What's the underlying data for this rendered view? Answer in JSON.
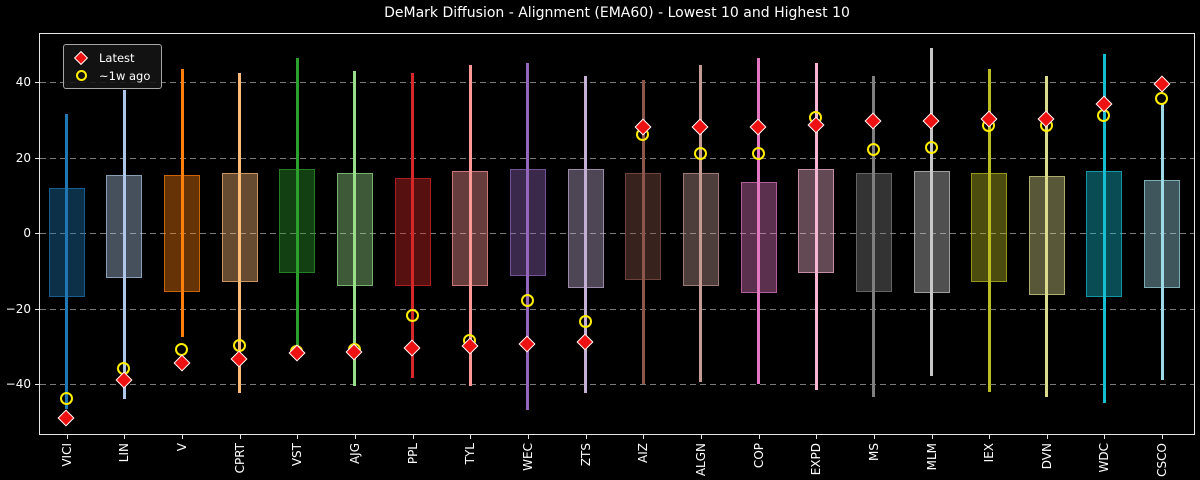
{
  "title": "DeMark Diffusion - Alignment (EMA60) - Lowest 10 and Highest 10",
  "legend": {
    "latest_label": "Latest",
    "week_ago_label": "~1w ago"
  },
  "colors": {
    "background": "#000000",
    "text": "#ffffff",
    "spine": "#e6e6e6",
    "tick": "#e6e6e6",
    "grid": "#7a7a7a",
    "latest_marker_fill": "#ee1111",
    "latest_marker_edge": "#ffffff",
    "week_ago_marker": "#ffee00",
    "legend_border": "#a6a6a6"
  },
  "chart_data": {
    "type": "box-whisker-range",
    "title": "DeMark Diffusion - Alignment (EMA60) - Lowest 10 and Highest 10",
    "xlabel": "",
    "ylabel": "",
    "ylim": [
      -53.5,
      53
    ],
    "grid": "horizontal-dashed",
    "legend_position": "upper-left",
    "legend_entries": [
      "Latest",
      "~1w ago"
    ],
    "y_ticks": [
      40,
      20,
      0,
      -20,
      -40
    ],
    "y_tick_labels": [
      "40",
      "20",
      "0",
      "−20",
      "−40"
    ],
    "categories": [
      "VICI",
      "LIN",
      "V",
      "CPRT",
      "VST",
      "AJG",
      "PPL",
      "TYL",
      "WEC",
      "ZTS",
      "AIZ",
      "ALGN",
      "COP",
      "EXPD",
      "MS",
      "MLM",
      "IEX",
      "DVN",
      "WDC",
      "CSCO"
    ],
    "series": [
      {
        "ticker": "VICI",
        "color": "#1f77b4",
        "whisker_low": -46.5,
        "whisker_high": 31.5,
        "box_low": -17,
        "box_high": 12,
        "latest": -49,
        "week_ago": -44
      },
      {
        "ticker": "LIN",
        "color": "#aec7e8",
        "whisker_low": -44,
        "whisker_high": 38,
        "box_low": -12,
        "box_high": 15.5,
        "latest": -39,
        "week_ago": -36
      },
      {
        "ticker": "V",
        "color": "#ff7f0e",
        "whisker_low": -27.5,
        "whisker_high": 43.5,
        "box_low": -15.5,
        "box_high": 15.5,
        "latest": -34.5,
        "week_ago": -31
      },
      {
        "ticker": "CPRT",
        "color": "#ffbb78",
        "whisker_low": -42.5,
        "whisker_high": 42.5,
        "box_low": -13,
        "box_high": 16,
        "latest": -33.5,
        "week_ago": -30
      },
      {
        "ticker": "VST",
        "color": "#2ca02c",
        "whisker_low": -33,
        "whisker_high": 46.5,
        "box_low": -10.5,
        "box_high": 17,
        "latest": -32,
        "week_ago": -31.5
      },
      {
        "ticker": "AJG",
        "color": "#98df8a",
        "whisker_low": -40.5,
        "whisker_high": 43,
        "box_low": -14,
        "box_high": 16,
        "latest": -31.5,
        "week_ago": -31
      },
      {
        "ticker": "PPL",
        "color": "#d62728",
        "whisker_low": -38.5,
        "whisker_high": 42.5,
        "box_low": -14,
        "box_high": 14.5,
        "latest": -30.5,
        "week_ago": -22
      },
      {
        "ticker": "TYL",
        "color": "#ff9896",
        "whisker_low": -40.5,
        "whisker_high": 44.5,
        "box_low": -14,
        "box_high": 16.5,
        "latest": -30,
        "week_ago": -28.5
      },
      {
        "ticker": "WEC",
        "color": "#9467bd",
        "whisker_low": -47,
        "whisker_high": 45,
        "box_low": -11.5,
        "box_high": 17,
        "latest": -29.5,
        "week_ago": -18
      },
      {
        "ticker": "ZTS",
        "color": "#c5b0d5",
        "whisker_low": -42.5,
        "whisker_high": 41.5,
        "box_low": -14.5,
        "box_high": 17,
        "latest": -29,
        "week_ago": -23.5
      },
      {
        "ticker": "AIZ",
        "color": "#8c564b",
        "whisker_low": -40,
        "whisker_high": 40.5,
        "box_low": -12.5,
        "box_high": 16,
        "latest": 28,
        "week_ago": 26
      },
      {
        "ticker": "ALGN",
        "color": "#c49c94",
        "whisker_low": -39.5,
        "whisker_high": 44.5,
        "box_low": -14,
        "box_high": 16,
        "latest": 28,
        "week_ago": 21
      },
      {
        "ticker": "COP",
        "color": "#e377c2",
        "whisker_low": -40,
        "whisker_high": 46.5,
        "box_low": -16,
        "box_high": 13.5,
        "latest": 28,
        "week_ago": 21
      },
      {
        "ticker": "EXPD",
        "color": "#f7b6d2",
        "whisker_low": -41.5,
        "whisker_high": 45,
        "box_low": -10.5,
        "box_high": 17,
        "latest": 28.5,
        "week_ago": 30.5
      },
      {
        "ticker": "MS",
        "color": "#7f7f7f",
        "whisker_low": -43.5,
        "whisker_high": 41.5,
        "box_low": -15.5,
        "box_high": 16,
        "latest": 29.5,
        "week_ago": 22
      },
      {
        "ticker": "MLM",
        "color": "#c7c7c7",
        "whisker_low": -38,
        "whisker_high": 49,
        "box_low": -16,
        "box_high": 16.5,
        "latest": 29.5,
        "week_ago": 22.5
      },
      {
        "ticker": "IEX",
        "color": "#bcbd22",
        "whisker_low": -42,
        "whisker_high": 43.5,
        "box_low": -13,
        "box_high": 16,
        "latest": 30,
        "week_ago": 28.5
      },
      {
        "ticker": "DVN",
        "color": "#dbdb8d",
        "whisker_low": -43.5,
        "whisker_high": 41.5,
        "box_low": -16.5,
        "box_high": 15,
        "latest": 30,
        "week_ago": 28.5
      },
      {
        "ticker": "WDC",
        "color": "#17becf",
        "whisker_low": -45,
        "whisker_high": 47.5,
        "box_low": -17,
        "box_high": 16.5,
        "latest": 34,
        "week_ago": 31
      },
      {
        "ticker": "CSCO",
        "color": "#9edae5",
        "whisker_low": -39,
        "whisker_high": 34.5,
        "box_low": -14.5,
        "box_high": 14,
        "latest": 39.5,
        "week_ago": 35.5
      }
    ]
  }
}
